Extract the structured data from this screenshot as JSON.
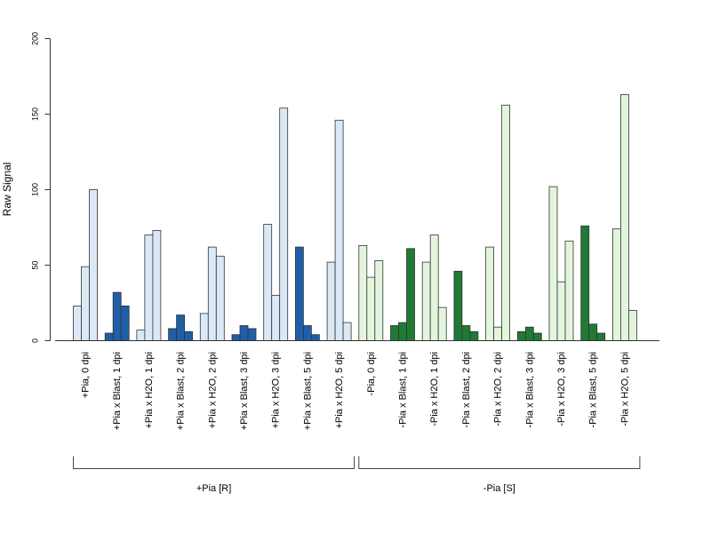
{
  "chart_data": {
    "type": "bar",
    "ylabel": "Raw Signal",
    "ylim": [
      0,
      200
    ],
    "yticks": [
      0,
      50,
      100,
      150,
      200
    ],
    "categories": [
      "+Pia, 0 dpi",
      "+Pia x Blast, 1 dpi",
      "+Pia x H2O, 1 dpi",
      "+Pia x Blast, 2 dpi",
      "+Pia x H2O, 2 dpi",
      "+Pia x Blast, 3 dpi",
      "+Pia x H2O, 3 dpi",
      "+Pia x Blast, 5 dpi",
      "+Pia x H2O, 5 dpi",
      "-Pia, 0 dpi",
      "-Pia x Blast, 1 dpi",
      "-Pia x H2O, 1 dpi",
      "-Pia x Blast, 2 dpi",
      "-Pia x H2O, 2 dpi",
      "-Pia x Blast, 3 dpi",
      "-Pia x H2O, 3 dpi",
      "-Pia x Blast, 5 dpi",
      "-Pia x H2O, 5 dpi"
    ],
    "bar_colors": [
      "#dbe8f6",
      "#1f5ea8",
      "#dbe8f6",
      "#1f5ea8",
      "#dbe8f6",
      "#1f5ea8",
      "#dbe8f6",
      "#1f5ea8",
      "#dbe8f6",
      "#e3f5dc",
      "#1f7a35",
      "#e3f5dc",
      "#1f7a35",
      "#e3f5dc",
      "#1f7a35",
      "#e3f5dc",
      "#1f7a35",
      "#e3f5dc"
    ],
    "replicates": [
      [
        23,
        49,
        100
      ],
      [
        5,
        32,
        23
      ],
      [
        7,
        70,
        73
      ],
      [
        8,
        17,
        6
      ],
      [
        18,
        62,
        56
      ],
      [
        4,
        10,
        8
      ],
      [
        77,
        30,
        154
      ],
      [
        62,
        10,
        4
      ],
      [
        52,
        146,
        12
      ],
      [
        63,
        42,
        53
      ],
      [
        10,
        12,
        61
      ],
      [
        52,
        70,
        22
      ],
      [
        46,
        10,
        6
      ],
      [
        62,
        9,
        156
      ],
      [
        6,
        9,
        5
      ],
      [
        102,
        39,
        66
      ],
      [
        76,
        11,
        5
      ],
      [
        74,
        163,
        20
      ]
    ],
    "groups": [
      {
        "label": "+Pia [R]",
        "first": 0,
        "last": 8
      },
      {
        "label": "-Pia [S]",
        "first": 9,
        "last": 17
      }
    ]
  }
}
